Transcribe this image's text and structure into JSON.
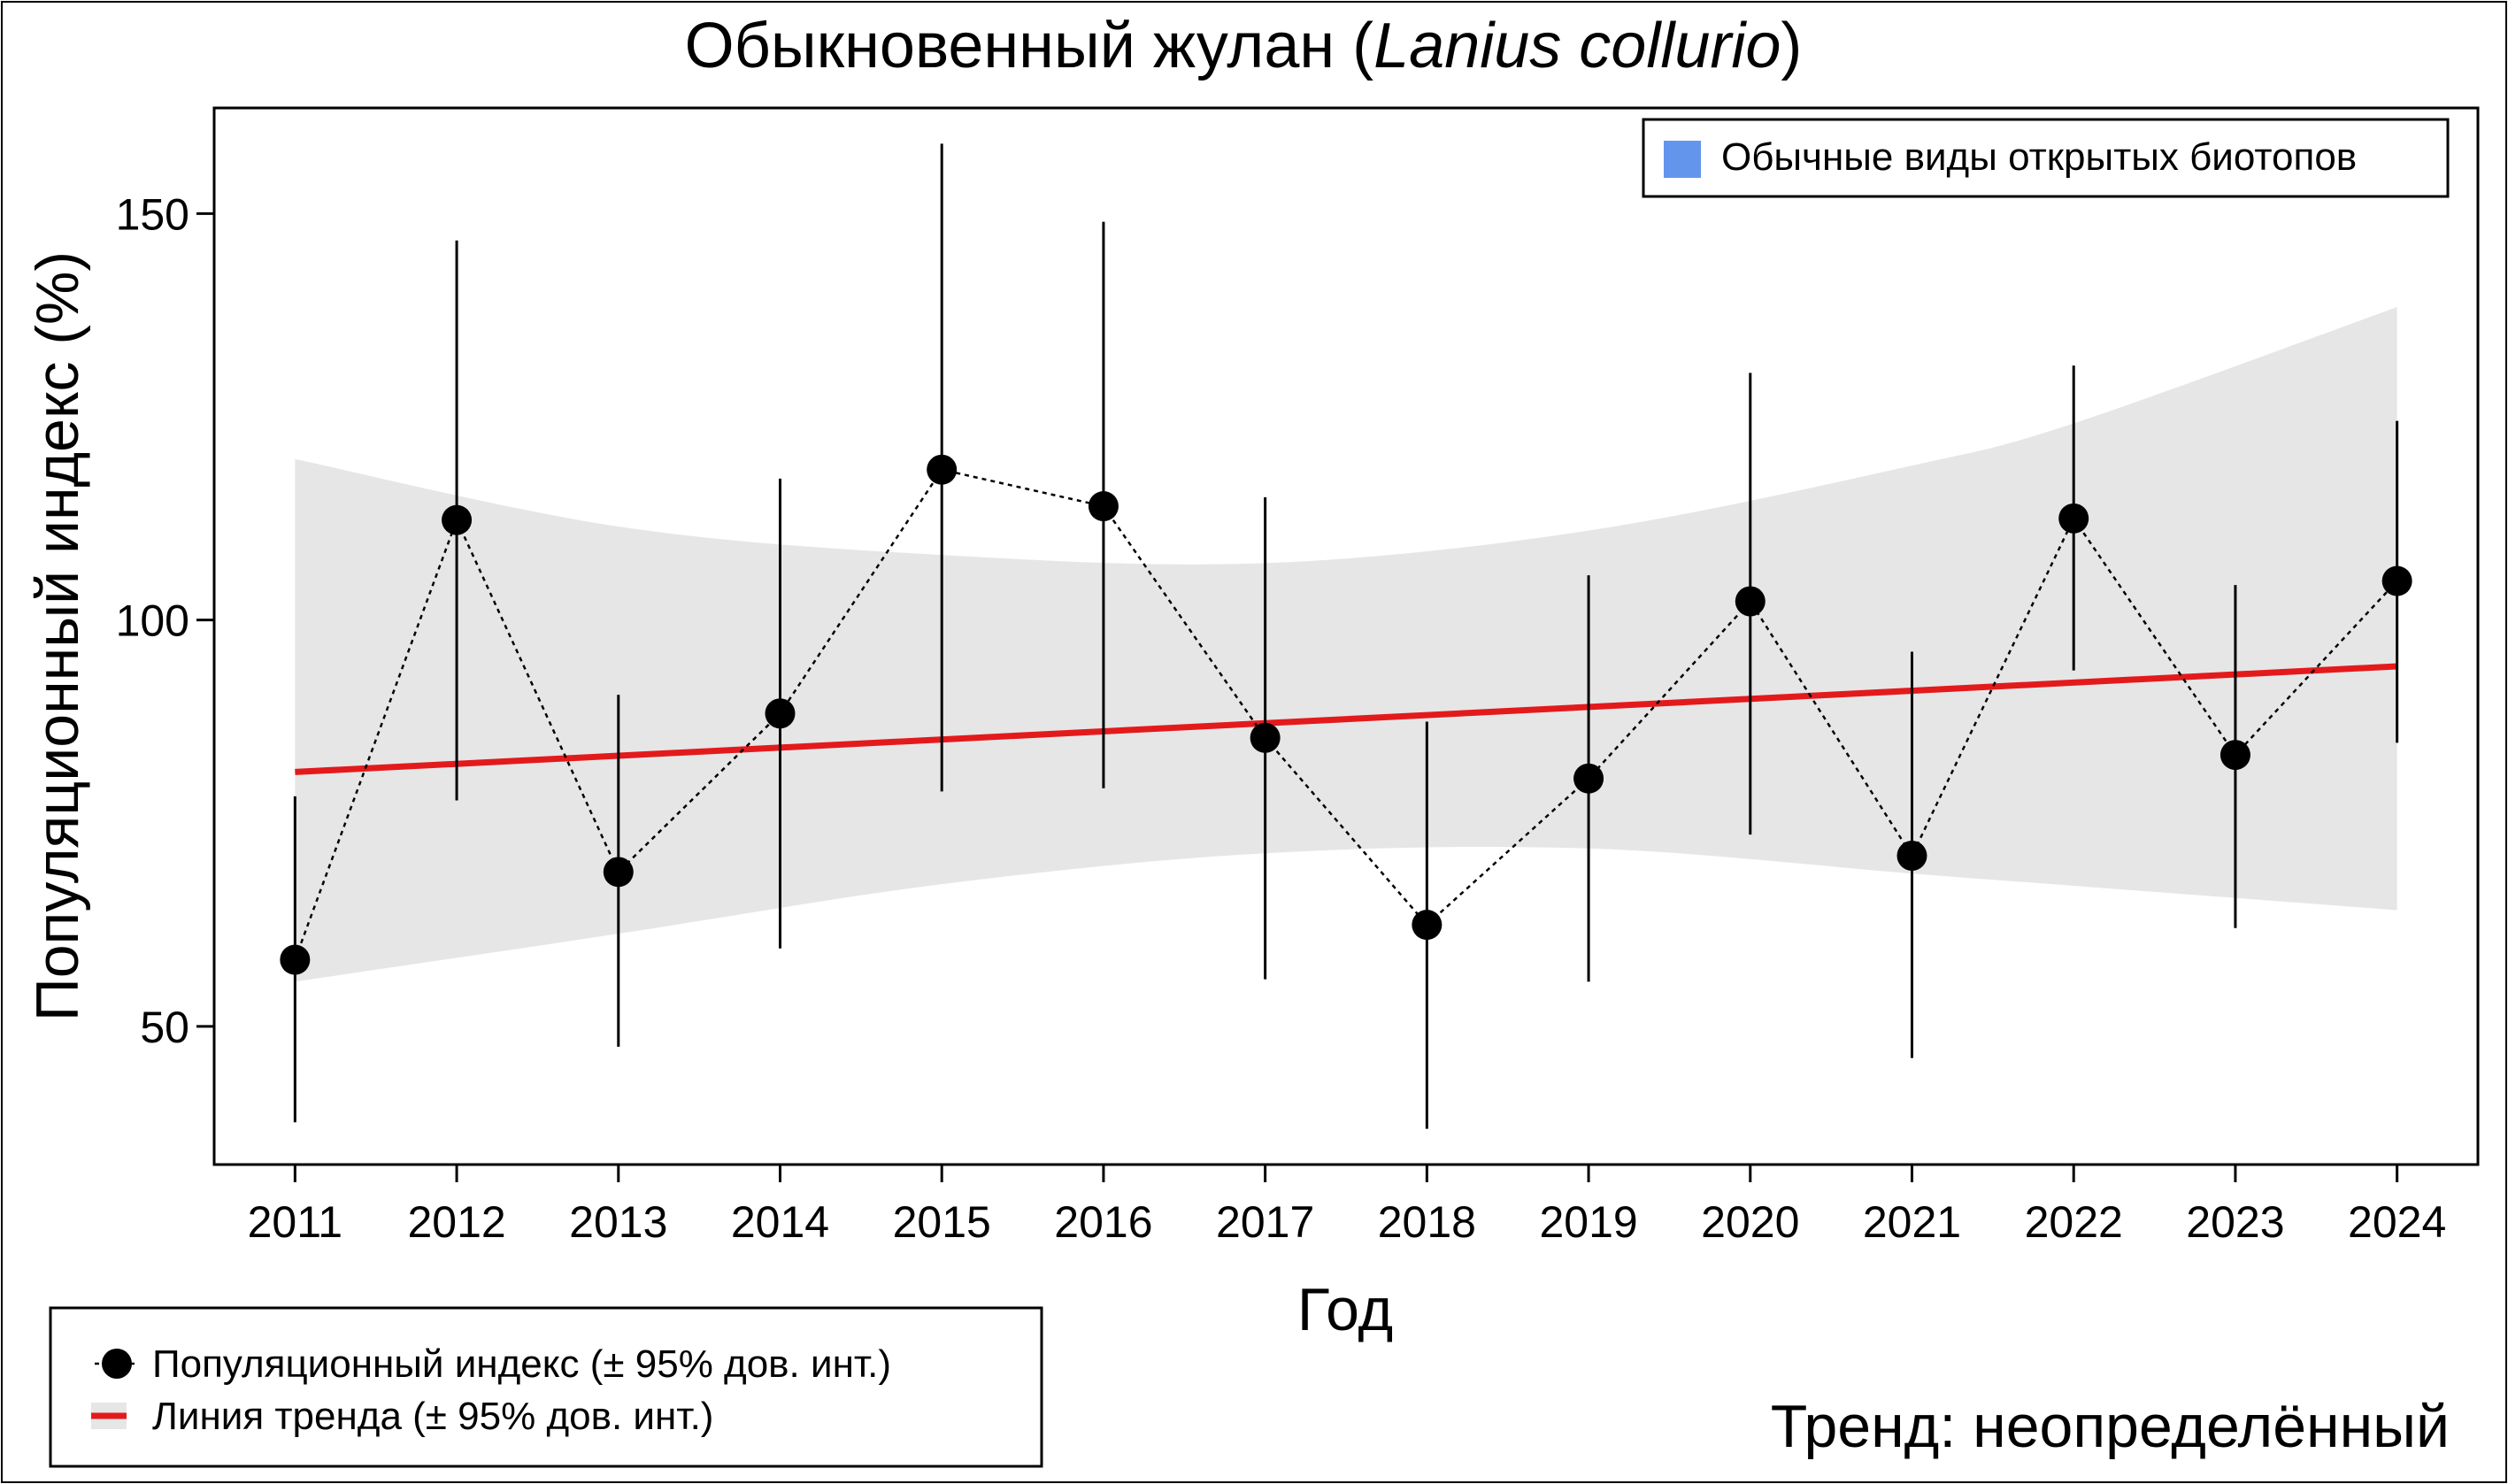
{
  "chart_data": {
    "type": "line",
    "title": {
      "prefix": "Обыкновенный жулан (",
      "italic": "Lanius collurio",
      "suffix": ")"
    },
    "xlabel": "Год",
    "ylabel": "Популяционный индекс (%)",
    "x": [
      2011,
      2012,
      2013,
      2014,
      2015,
      2016,
      2017,
      2018,
      2019,
      2020,
      2021,
      2022,
      2023,
      2024
    ],
    "x_tick_labels": [
      "2011",
      "2012",
      "2013",
      "2014",
      "2015",
      "2016",
      "2017",
      "2018",
      "2019",
      "2020",
      "2021",
      "2022",
      "2023",
      "2024"
    ],
    "y_ticks": [
      50,
      100,
      150
    ],
    "y_tick_labels": [
      "50",
      "100",
      "150"
    ],
    "xlim": [
      2010.5,
      2024.5
    ],
    "ylim": [
      33,
      163
    ],
    "series": [
      {
        "name": "Популяционный индекс (± 95% дов. инт.)",
        "values": [
          58.2,
          112.3,
          69.0,
          88.5,
          118.5,
          114.0,
          85.5,
          62.5,
          80.5,
          102.3,
          71.0,
          112.5,
          83.4,
          104.8
        ],
        "ci_low": [
          38.2,
          77.8,
          47.5,
          59.6,
          78.9,
          79.3,
          55.8,
          37.4,
          55.5,
          73.6,
          46.1,
          93.8,
          62.1,
          84.9
        ],
        "ci_high": [
          78.3,
          146.7,
          90.8,
          117.4,
          158.6,
          149.0,
          115.1,
          87.5,
          105.5,
          130.4,
          96.1,
          131.3,
          104.3,
          124.5
        ]
      },
      {
        "name": "Линия тренда (± 95% дов. инт.)",
        "trend_start": 81.3,
        "trend_end": 94.3,
        "band_x": [
          2011,
          2013,
          2015,
          2017,
          2019,
          2021,
          2022,
          2024
        ],
        "band_low": [
          55.5,
          61.4,
          67.5,
          71.3,
          71.9,
          68.8,
          67.3,
          64.3
        ],
        "band_high": [
          119.8,
          111.5,
          108.0,
          107.0,
          111.0,
          119.0,
          124.2,
          138.5
        ]
      }
    ],
    "legend": {
      "placement": "bottom-left",
      "items": [
        "Популяционный индекс (± 95% дов. инт.)",
        "Линия тренда (± 95% дов. инт.)"
      ]
    },
    "category_legend": {
      "placement": "top-right",
      "label": "Обычные виды открытых биотопов",
      "color": "#6495ED"
    },
    "trend_text": "Тренд: неопределённый",
    "colors": {
      "points": "#000000",
      "trend": "#E31A1C",
      "band": "#E6E6E6",
      "category": "#6495ED"
    },
    "grid": false
  }
}
